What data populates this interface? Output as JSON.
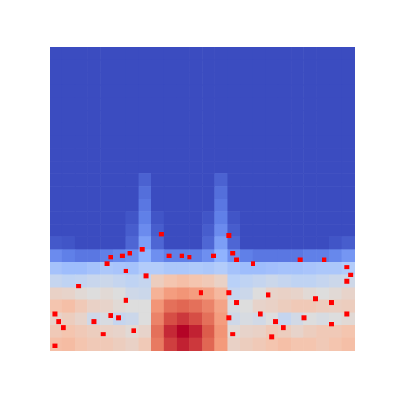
{
  "chart_data": {
    "type": "heatmap",
    "tick_labels": false,
    "xlim": [
      0,
      24
    ],
    "ylim": [
      24,
      0
    ],
    "color_range": [
      0,
      1
    ],
    "cells": [
      [
        0,
        0,
        0,
        0,
        0,
        0,
        0,
        0,
        0,
        0,
        0,
        0,
        0,
        0,
        0,
        0,
        0,
        0,
        0,
        0,
        0,
        0,
        0,
        0
      ],
      [
        0,
        0,
        0,
        0,
        0,
        0,
        0,
        0,
        0,
        0,
        0,
        0,
        0,
        0,
        0,
        0,
        0,
        0,
        0,
        0,
        0,
        0,
        0,
        0
      ],
      [
        0,
        0,
        0,
        0,
        0,
        0,
        0,
        0,
        0,
        0,
        0,
        0,
        0,
        0,
        0,
        0,
        0,
        0,
        0,
        0,
        0,
        0,
        0,
        0
      ],
      [
        0,
        0,
        0,
        0,
        0,
        0,
        0,
        0,
        0,
        0,
        0,
        0,
        0,
        0,
        0,
        0,
        0,
        0,
        0,
        0,
        0,
        0,
        0,
        0
      ],
      [
        0,
        0,
        0,
        0,
        0,
        0,
        0,
        0,
        0,
        0,
        0,
        0,
        0,
        0,
        0,
        0,
        0,
        0,
        0,
        0,
        0,
        0,
        0,
        0
      ],
      [
        0,
        0,
        0,
        0,
        0,
        0,
        0,
        0,
        0,
        0,
        0,
        0,
        0,
        0,
        0,
        0,
        0,
        0,
        0,
        0,
        0,
        0,
        0,
        0
      ],
      [
        0,
        0,
        0,
        0,
        0,
        0,
        0,
        0,
        0,
        0,
        0,
        0,
        0,
        0,
        0,
        0,
        0,
        0,
        0,
        0,
        0,
        0,
        0,
        0
      ],
      [
        0,
        0,
        0,
        0,
        0,
        0,
        0,
        0,
        0,
        0,
        0,
        0,
        0,
        0,
        0,
        0,
        0,
        0,
        0,
        0,
        0,
        0,
        0,
        0
      ],
      [
        0,
        0,
        0,
        0,
        0,
        0,
        0,
        0,
        0,
        0,
        0,
        0,
        0,
        0,
        0,
        0,
        0,
        0,
        0,
        0,
        0,
        0,
        0,
        0
      ],
      [
        0,
        0,
        0,
        0,
        0,
        0,
        0,
        0,
        0,
        0,
        0,
        0,
        0,
        0,
        0,
        0,
        0,
        0,
        0,
        0,
        0,
        0,
        0,
        0
      ],
      [
        0,
        0,
        0,
        0,
        0,
        0,
        0,
        0.05,
        0,
        0,
        0,
        0,
        0,
        0.05,
        0,
        0,
        0,
        0,
        0,
        0,
        0,
        0,
        0,
        0
      ],
      [
        0,
        0,
        0,
        0,
        0,
        0,
        0,
        0.08,
        0,
        0,
        0,
        0,
        0,
        0.08,
        0,
        0,
        0,
        0,
        0,
        0,
        0,
        0,
        0,
        0
      ],
      [
        0,
        0,
        0,
        0,
        0,
        0,
        0,
        0.1,
        0,
        0,
        0,
        0,
        0,
        0.1,
        0,
        0,
        0,
        0,
        0,
        0,
        0,
        0,
        0,
        0
      ],
      [
        0,
        0,
        0,
        0,
        0,
        0,
        0.02,
        0.12,
        0.02,
        0,
        0,
        0,
        0.02,
        0.12,
        0.02,
        0,
        0,
        0,
        0,
        0,
        0,
        0,
        0,
        0
      ],
      [
        0,
        0,
        0,
        0,
        0,
        0,
        0.04,
        0.15,
        0.04,
        0,
        0,
        0,
        0.04,
        0.15,
        0.04,
        0,
        0,
        0,
        0,
        0,
        0,
        0,
        0,
        0
      ],
      [
        0.03,
        0.02,
        0,
        0,
        0,
        0,
        0.06,
        0.2,
        0.06,
        0,
        0,
        0,
        0.06,
        0.2,
        0.06,
        0,
        0,
        0,
        0,
        0,
        0,
        0,
        0.02,
        0.04
      ],
      [
        0.15,
        0.12,
        0.1,
        0.1,
        0.12,
        0.14,
        0.16,
        0.26,
        0.16,
        0.12,
        0.12,
        0.12,
        0.16,
        0.26,
        0.16,
        0.12,
        0.1,
        0.1,
        0.1,
        0.1,
        0.12,
        0.12,
        0.14,
        0.18
      ],
      [
        0.32,
        0.3,
        0.3,
        0.32,
        0.34,
        0.33,
        0.32,
        0.36,
        0.36,
        0.34,
        0.34,
        0.35,
        0.34,
        0.36,
        0.32,
        0.3,
        0.3,
        0.31,
        0.32,
        0.32,
        0.33,
        0.34,
        0.34,
        0.36
      ],
      [
        0.42,
        0.4,
        0.41,
        0.43,
        0.44,
        0.42,
        0.4,
        0.42,
        0.58,
        0.62,
        0.64,
        0.62,
        0.6,
        0.56,
        0.38,
        0.4,
        0.42,
        0.44,
        0.42,
        0.4,
        0.4,
        0.42,
        0.44,
        0.45
      ],
      [
        0.56,
        0.55,
        0.52,
        0.5,
        0.52,
        0.5,
        0.45,
        0.44,
        0.68,
        0.74,
        0.76,
        0.74,
        0.72,
        0.66,
        0.42,
        0.44,
        0.5,
        0.55,
        0.56,
        0.55,
        0.52,
        0.5,
        0.52,
        0.55
      ],
      [
        0.62,
        0.64,
        0.6,
        0.56,
        0.55,
        0.52,
        0.5,
        0.5,
        0.76,
        0.84,
        0.86,
        0.84,
        0.8,
        0.72,
        0.48,
        0.5,
        0.55,
        0.56,
        0.58,
        0.6,
        0.6,
        0.58,
        0.57,
        0.58
      ],
      [
        0.55,
        0.58,
        0.55,
        0.45,
        0.48,
        0.42,
        0.44,
        0.5,
        0.8,
        0.9,
        0.93,
        0.9,
        0.84,
        0.74,
        0.45,
        0.48,
        0.46,
        0.5,
        0.42,
        0.46,
        0.5,
        0.48,
        0.5,
        0.52
      ],
      [
        0.6,
        0.62,
        0.6,
        0.58,
        0.56,
        0.55,
        0.52,
        0.55,
        0.84,
        0.95,
        1.0,
        0.96,
        0.88,
        0.76,
        0.52,
        0.55,
        0.56,
        0.6,
        0.58,
        0.55,
        0.58,
        0.6,
        0.6,
        0.62
      ],
      [
        0.64,
        0.65,
        0.62,
        0.6,
        0.6,
        0.58,
        0.56,
        0.6,
        0.82,
        0.92,
        0.96,
        0.93,
        0.86,
        0.75,
        0.56,
        0.58,
        0.6,
        0.62,
        0.64,
        0.62,
        0.62,
        0.6,
        0.62,
        0.64
      ]
    ],
    "points": {
      "color": "#ff0000",
      "marker": "square",
      "x": [
        4.8,
        5.7,
        6.3,
        4.5,
        7.3,
        8.8,
        9.4,
        10.4,
        11.0,
        12.9,
        14.1,
        14.4,
        14.7,
        16.0,
        19.7,
        21.6,
        23.4,
        23.7,
        23.4,
        6.0,
        7.6,
        2.3,
        6.0,
        11.9,
        14.1,
        14.7,
        17.2,
        20.9,
        22.2,
        0.4,
        0.7,
        1.1,
        4.8,
        5.4,
        6.6,
        3.5,
        14.1,
        14.4,
        16.6,
        17.8,
        18.4,
        20.0,
        22.2,
        23.4,
        4.2,
        17.5,
        0.4
      ],
      "y": [
        16.6,
        16.5,
        16.3,
        17.1,
        16.0,
        14.8,
        16.5,
        16.5,
        16.6,
        16.5,
        14.9,
        16.3,
        16.8,
        17.1,
        16.8,
        16.8,
        17.4,
        18.0,
        18.5,
        17.7,
        18.1,
        18.9,
        20.0,
        19.4,
        19.4,
        20.2,
        19.6,
        19.9,
        20.2,
        21.1,
        21.7,
        22.2,
        21.2,
        21.4,
        22.4,
        21.7,
        21.4,
        22.7,
        21.1,
        21.7,
        22.2,
        21.4,
        21.9,
        21.1,
        22.7,
        22.9,
        23.6
      ]
    }
  }
}
